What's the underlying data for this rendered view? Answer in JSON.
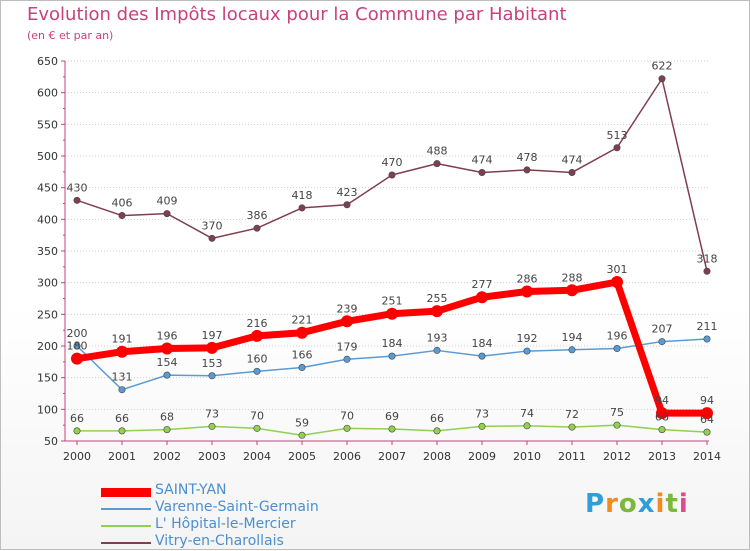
{
  "chart_data": {
    "type": "line",
    "title": "Evolution des Impôts locaux pour la Commune par Habitant",
    "subtitle": "(en € et par an)",
    "xlabel": "",
    "ylabel": "",
    "ylim": [
      50,
      650
    ],
    "yticks": [
      50,
      100,
      150,
      200,
      250,
      300,
      350,
      400,
      450,
      500,
      550,
      600,
      650
    ],
    "x": [
      "2000",
      "2001",
      "2002",
      "2003",
      "2004",
      "2005",
      "2006",
      "2007",
      "2008",
      "2009",
      "2010",
      "2011",
      "2012",
      "2013",
      "2014"
    ],
    "grid": true,
    "legend_position": "bottom-left",
    "series": [
      {
        "name": "SAINT-YAN",
        "color": "#ff0000",
        "values": [
          180,
          191,
          196,
          197,
          216,
          221,
          239,
          251,
          255,
          277,
          286,
          288,
          301,
          94,
          94
        ]
      },
      {
        "name": "Varenne-Saint-Germain",
        "color": "#5b9bd5",
        "values": [
          200,
          131,
          154,
          153,
          160,
          166,
          179,
          184,
          193,
          184,
          192,
          194,
          196,
          207,
          211
        ]
      },
      {
        "name": "L' Hôpital-le-Mercier",
        "color": "#92d050",
        "values": [
          66,
          66,
          68,
          73,
          70,
          59,
          70,
          69,
          66,
          73,
          74,
          72,
          75,
          68,
          64
        ]
      },
      {
        "name": "Vitry-en-Charollais",
        "color": "#7f3f4f",
        "values": [
          430,
          406,
          409,
          370,
          386,
          418,
          423,
          470,
          488,
          474,
          478,
          474,
          513,
          622,
          318
        ]
      }
    ]
  },
  "logo": {
    "letters": [
      "P",
      "r",
      "o",
      "x",
      "i",
      "t",
      "i"
    ],
    "colors": [
      "#2e9fd8",
      "#f28b1c",
      "#7cb83a",
      "#2e9fd8",
      "#f28b1c",
      "#7cb83a",
      "#e04a8a"
    ]
  }
}
